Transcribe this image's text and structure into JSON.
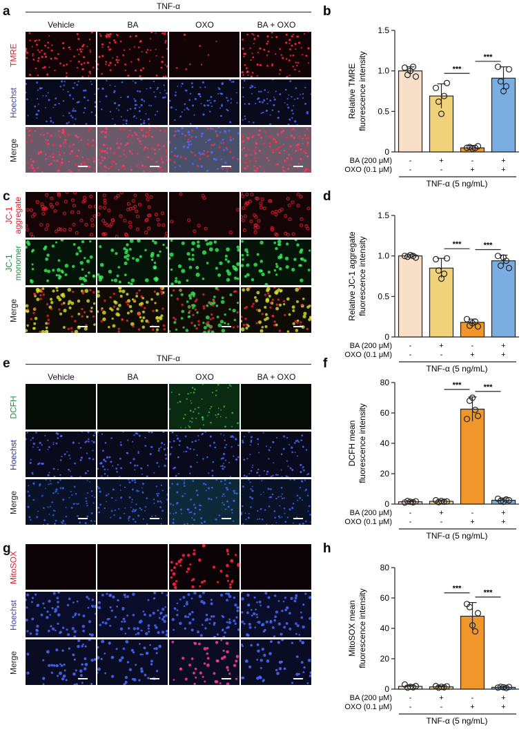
{
  "micrographs": [
    {
      "label": "a",
      "header": "TNF-α",
      "columns": [
        "Vehicle",
        "BA",
        "OXO",
        "BA + OXO"
      ],
      "rows": [
        {
          "name": "TMRE",
          "color": "#e0202a",
          "type": "tmre"
        },
        {
          "name": "Hoechst",
          "color": "#3a3fb0",
          "type": "hoechst"
        },
        {
          "name": "Merge",
          "color": "#222222",
          "type": "merge_tmre"
        }
      ]
    },
    {
      "label": "c",
      "header": "",
      "columns": [],
      "rows": [
        {
          "name": "JC-1 aggregate",
          "color": "#e0202a",
          "type": "jc1agg"
        },
        {
          "name": "JC-1 monomer",
          "color": "#1f8f3a",
          "type": "jc1mono"
        },
        {
          "name": "Merge",
          "color": "#222222",
          "type": "merge_jc1"
        }
      ]
    },
    {
      "label": "e",
      "header": "TNF-α",
      "columns": [
        "Vehicle",
        "BA",
        "OXO",
        "BA + OXO"
      ],
      "rows": [
        {
          "name": "DCFH",
          "color": "#1f8f3a",
          "type": "dcfh"
        },
        {
          "name": "Hoechst",
          "color": "#2a2f9a",
          "type": "hoechst"
        },
        {
          "name": "Merge",
          "color": "#222222",
          "type": "merge_dcfh"
        }
      ]
    },
    {
      "label": "g",
      "header": "",
      "columns": [],
      "rows": [
        {
          "name": "MitoSOX",
          "color": "#e0202a",
          "type": "mitosox"
        },
        {
          "name": "Hoechst",
          "color": "#3a3fb0",
          "type": "hoechst2"
        },
        {
          "name": "Merge",
          "color": "#222222",
          "type": "merge_mitosox"
        }
      ]
    }
  ],
  "chart_data": [
    {
      "label": "b",
      "type": "bar",
      "categories": [
        "Vehicle",
        "BA",
        "OXO",
        "BA + OXO"
      ],
      "values": [
        1.0,
        0.69,
        0.05,
        0.91
      ],
      "errors": [
        0.05,
        0.15,
        0.03,
        0.14
      ],
      "points": [
        [
          1.04,
          0.95,
          1.0,
          1.05,
          0.93
        ],
        [
          0.79,
          0.62,
          0.47,
          0.69,
          0.85
        ],
        [
          0.05,
          0.06,
          0.04,
          0.05,
          0.07
        ],
        [
          1.05,
          0.87,
          0.75,
          0.81,
          1.02
        ]
      ],
      "colors": [
        "#f8dfc8",
        "#f0d27a",
        "#f0962a",
        "#7aaee0"
      ],
      "ylabel": "Relative TMRE\nfluorescence intensity",
      "ylim": [
        0,
        1.5
      ],
      "yticks": [
        "0",
        "0.5",
        "1.0",
        "1.5"
      ],
      "sig": [
        "***",
        "***"
      ],
      "treat_rows": [
        {
          "label": "BA (200 μM)",
          "signs": [
            "-",
            "+",
            "-",
            "+"
          ]
        },
        {
          "label": "OXO (0.1 μM)",
          "signs": [
            "-",
            "-",
            "+",
            "+"
          ]
        }
      ],
      "condition": "TNF-α (5 ng/mL)"
    },
    {
      "label": "d",
      "type": "bar",
      "categories": [
        "Vehicle",
        "BA",
        "OXO",
        "BA + OXO"
      ],
      "values": [
        1.0,
        0.85,
        0.18,
        0.94
      ],
      "errors": [
        0.02,
        0.12,
        0.04,
        0.07
      ],
      "points": [
        [
          1.0,
          0.99,
          1.01,
          1.0,
          0.98
        ],
        [
          0.96,
          0.82,
          0.72,
          0.78,
          0.97
        ],
        [
          0.22,
          0.14,
          0.17,
          0.19,
          0.13
        ],
        [
          1.0,
          0.88,
          0.98,
          0.94,
          0.85
        ]
      ],
      "colors": [
        "#f8dfc8",
        "#f0d27a",
        "#f0962a",
        "#7aaee0"
      ],
      "ylabel": "Relative JC-1 aggregate\nfluorescence intensity",
      "ylim": [
        0,
        1.5
      ],
      "yticks": [
        "0",
        "0.5",
        "1.0",
        "1.5"
      ],
      "sig": [
        "***",
        "***"
      ],
      "treat_rows": [
        {
          "label": "BA (200 μM)",
          "signs": [
            "-",
            "+",
            "-",
            "+"
          ]
        },
        {
          "label": "OXO (0.1 μM)",
          "signs": [
            "-",
            "-",
            "+",
            "+"
          ]
        }
      ],
      "condition": "TNF-α (5 ng/mL)"
    },
    {
      "label": "f",
      "type": "bar",
      "categories": [
        "Vehicle",
        "BA",
        "OXO",
        "BA + OXO"
      ],
      "values": [
        1.5,
        1.8,
        62.5,
        2.5
      ],
      "errors": [
        0.6,
        0.8,
        8.0,
        1.5
      ],
      "points": [
        [
          1.0,
          2.0,
          1.5,
          1.2,
          1.8
        ],
        [
          2.5,
          1.3,
          2.0,
          1.5,
          1.7
        ],
        [
          56.0,
          68.0,
          70.0,
          62.0,
          58.0
        ],
        [
          3.5,
          2.0,
          1.5,
          3.0,
          2.5
        ]
      ],
      "colors": [
        "#f8dfc8",
        "#f0d27a",
        "#f0962a",
        "#7aaee0"
      ],
      "ylabel": "DCFH mean\nfluorescence intensity",
      "ylim": [
        0,
        80
      ],
      "yticks": [
        "0",
        "20",
        "40",
        "60",
        "80"
      ],
      "sig": [
        "***",
        "***"
      ],
      "treat_rows": [
        {
          "label": "BA (200 μM)",
          "signs": [
            "-",
            "+",
            "-",
            "+"
          ]
        },
        {
          "label": "OXO (0.1 μM)",
          "signs": [
            "-",
            "-",
            "+",
            "+"
          ]
        }
      ],
      "condition": "TNF-α (5 ng/mL)"
    },
    {
      "label": "h",
      "type": "bar",
      "categories": [
        "Vehicle",
        "BA",
        "OXO",
        "BA + OXO"
      ],
      "values": [
        1.8,
        1.5,
        48.0,
        1.2
      ],
      "errors": [
        0.8,
        0.5,
        9.0,
        0.4
      ],
      "points": [
        [
          3.0,
          1.0,
          1.5,
          1.2,
          2.0
        ],
        [
          2.0,
          1.0,
          1.5,
          1.2,
          1.8
        ],
        [
          56.0,
          54.0,
          42.0,
          38.0,
          50.0
        ],
        [
          1.0,
          1.5,
          1.2,
          0.8,
          1.4
        ]
      ],
      "colors": [
        "#f8dfc8",
        "#f0d27a",
        "#f0962a",
        "#7aaee0"
      ],
      "ylabel": "MitoSOX mean\nfluorescence intensity",
      "ylim": [
        0,
        80
      ],
      "yticks": [
        "0",
        "20",
        "40",
        "60",
        "80"
      ],
      "sig": [
        "***",
        "***"
      ],
      "treat_rows": [
        {
          "label": "BA (200 μM)",
          "signs": [
            "-",
            "+",
            "-",
            "+"
          ]
        },
        {
          "label": "OXO (0.1 μM)",
          "signs": [
            "-",
            "-",
            "+",
            "+"
          ]
        }
      ],
      "condition": "TNF-α (5 ng/mL)"
    }
  ]
}
